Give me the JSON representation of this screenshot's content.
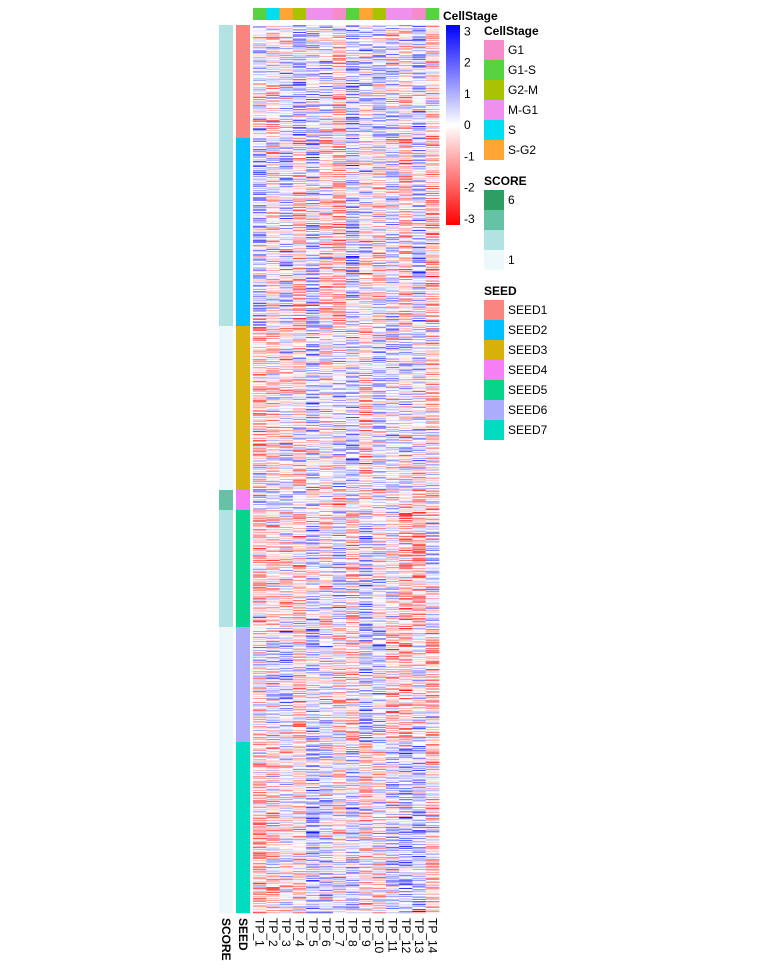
{
  "chart_data": {
    "type": "heatmap",
    "columns": [
      "TP_1",
      "TP_2",
      "TP_3",
      "TP_4",
      "TP_5",
      "TP_6",
      "TP_7",
      "TP_8",
      "TP_9",
      "TP_10",
      "TP_11",
      "TP_12",
      "TP_13",
      "TP_14"
    ],
    "column_annotation": {
      "name": "CellStage",
      "values": [
        "G1-S",
        "S",
        "S-G2",
        "G2-M",
        "M-G1",
        "M-G1",
        "G1",
        "G1-S",
        "S-G2",
        "G2-M",
        "M-G1",
        "M-G1",
        "G1",
        "G1-S"
      ]
    },
    "row_annotations": [
      {
        "name": "SCORE"
      },
      {
        "name": "SEED"
      }
    ],
    "row_blocks": [
      {
        "seed": "SEED1",
        "score_level": 2,
        "rows": 113
      },
      {
        "seed": "SEED2",
        "score_level": 2,
        "rows": 188
      },
      {
        "seed": "SEED3",
        "score_level": 3,
        "rows": 164
      },
      {
        "seed": "SEED4",
        "score_level": 1,
        "rows": 20
      },
      {
        "seed": "SEED5",
        "score_level": 2,
        "rows": 117
      },
      {
        "seed": "SEED6",
        "score_level": 3,
        "rows": 115
      },
      {
        "seed": "SEED7",
        "score_level": 3,
        "rows": 171
      }
    ],
    "color_scale": {
      "min": -3.2,
      "mid": 0,
      "max": 3.2,
      "low_color": "#ff0000",
      "mid_color": "#ffffff",
      "high_color": "#0000ff",
      "ticks": [
        "3",
        "2",
        "1",
        "0",
        "-1",
        "-2",
        "-3"
      ]
    },
    "legends": {
      "cellstage": {
        "title": "CellStage",
        "items": [
          {
            "label": "G1",
            "color": "#f58cc9"
          },
          {
            "label": "G1-S",
            "color": "#56d33f"
          },
          {
            "label": "G2-M",
            "color": "#a8c300"
          },
          {
            "label": "M-G1",
            "color": "#ef90ef"
          },
          {
            "label": "S",
            "color": "#00dcf0"
          },
          {
            "label": "S-G2",
            "color": "#ffa533"
          }
        ]
      },
      "score": {
        "title": "SCORE",
        "colors": [
          "#2e9e62",
          "#66c2a5",
          "#b2e2e2",
          "#edf8fb"
        ],
        "labels": [
          "6",
          "1"
        ]
      },
      "seed": {
        "title": "SEED",
        "items": [
          {
            "label": "SEED1",
            "color": "#f8867e"
          },
          {
            "label": "SEED2",
            "color": "#00bfff"
          },
          {
            "label": "SEED3",
            "color": "#d6b10a"
          },
          {
            "label": "SEED4",
            "color": "#f77ff5"
          },
          {
            "label": "SEED5",
            "color": "#06d48d"
          },
          {
            "label": "SEED6",
            "color": "#a9adfb"
          },
          {
            "label": "SEED7",
            "color": "#00dcc0"
          }
        ]
      }
    }
  }
}
